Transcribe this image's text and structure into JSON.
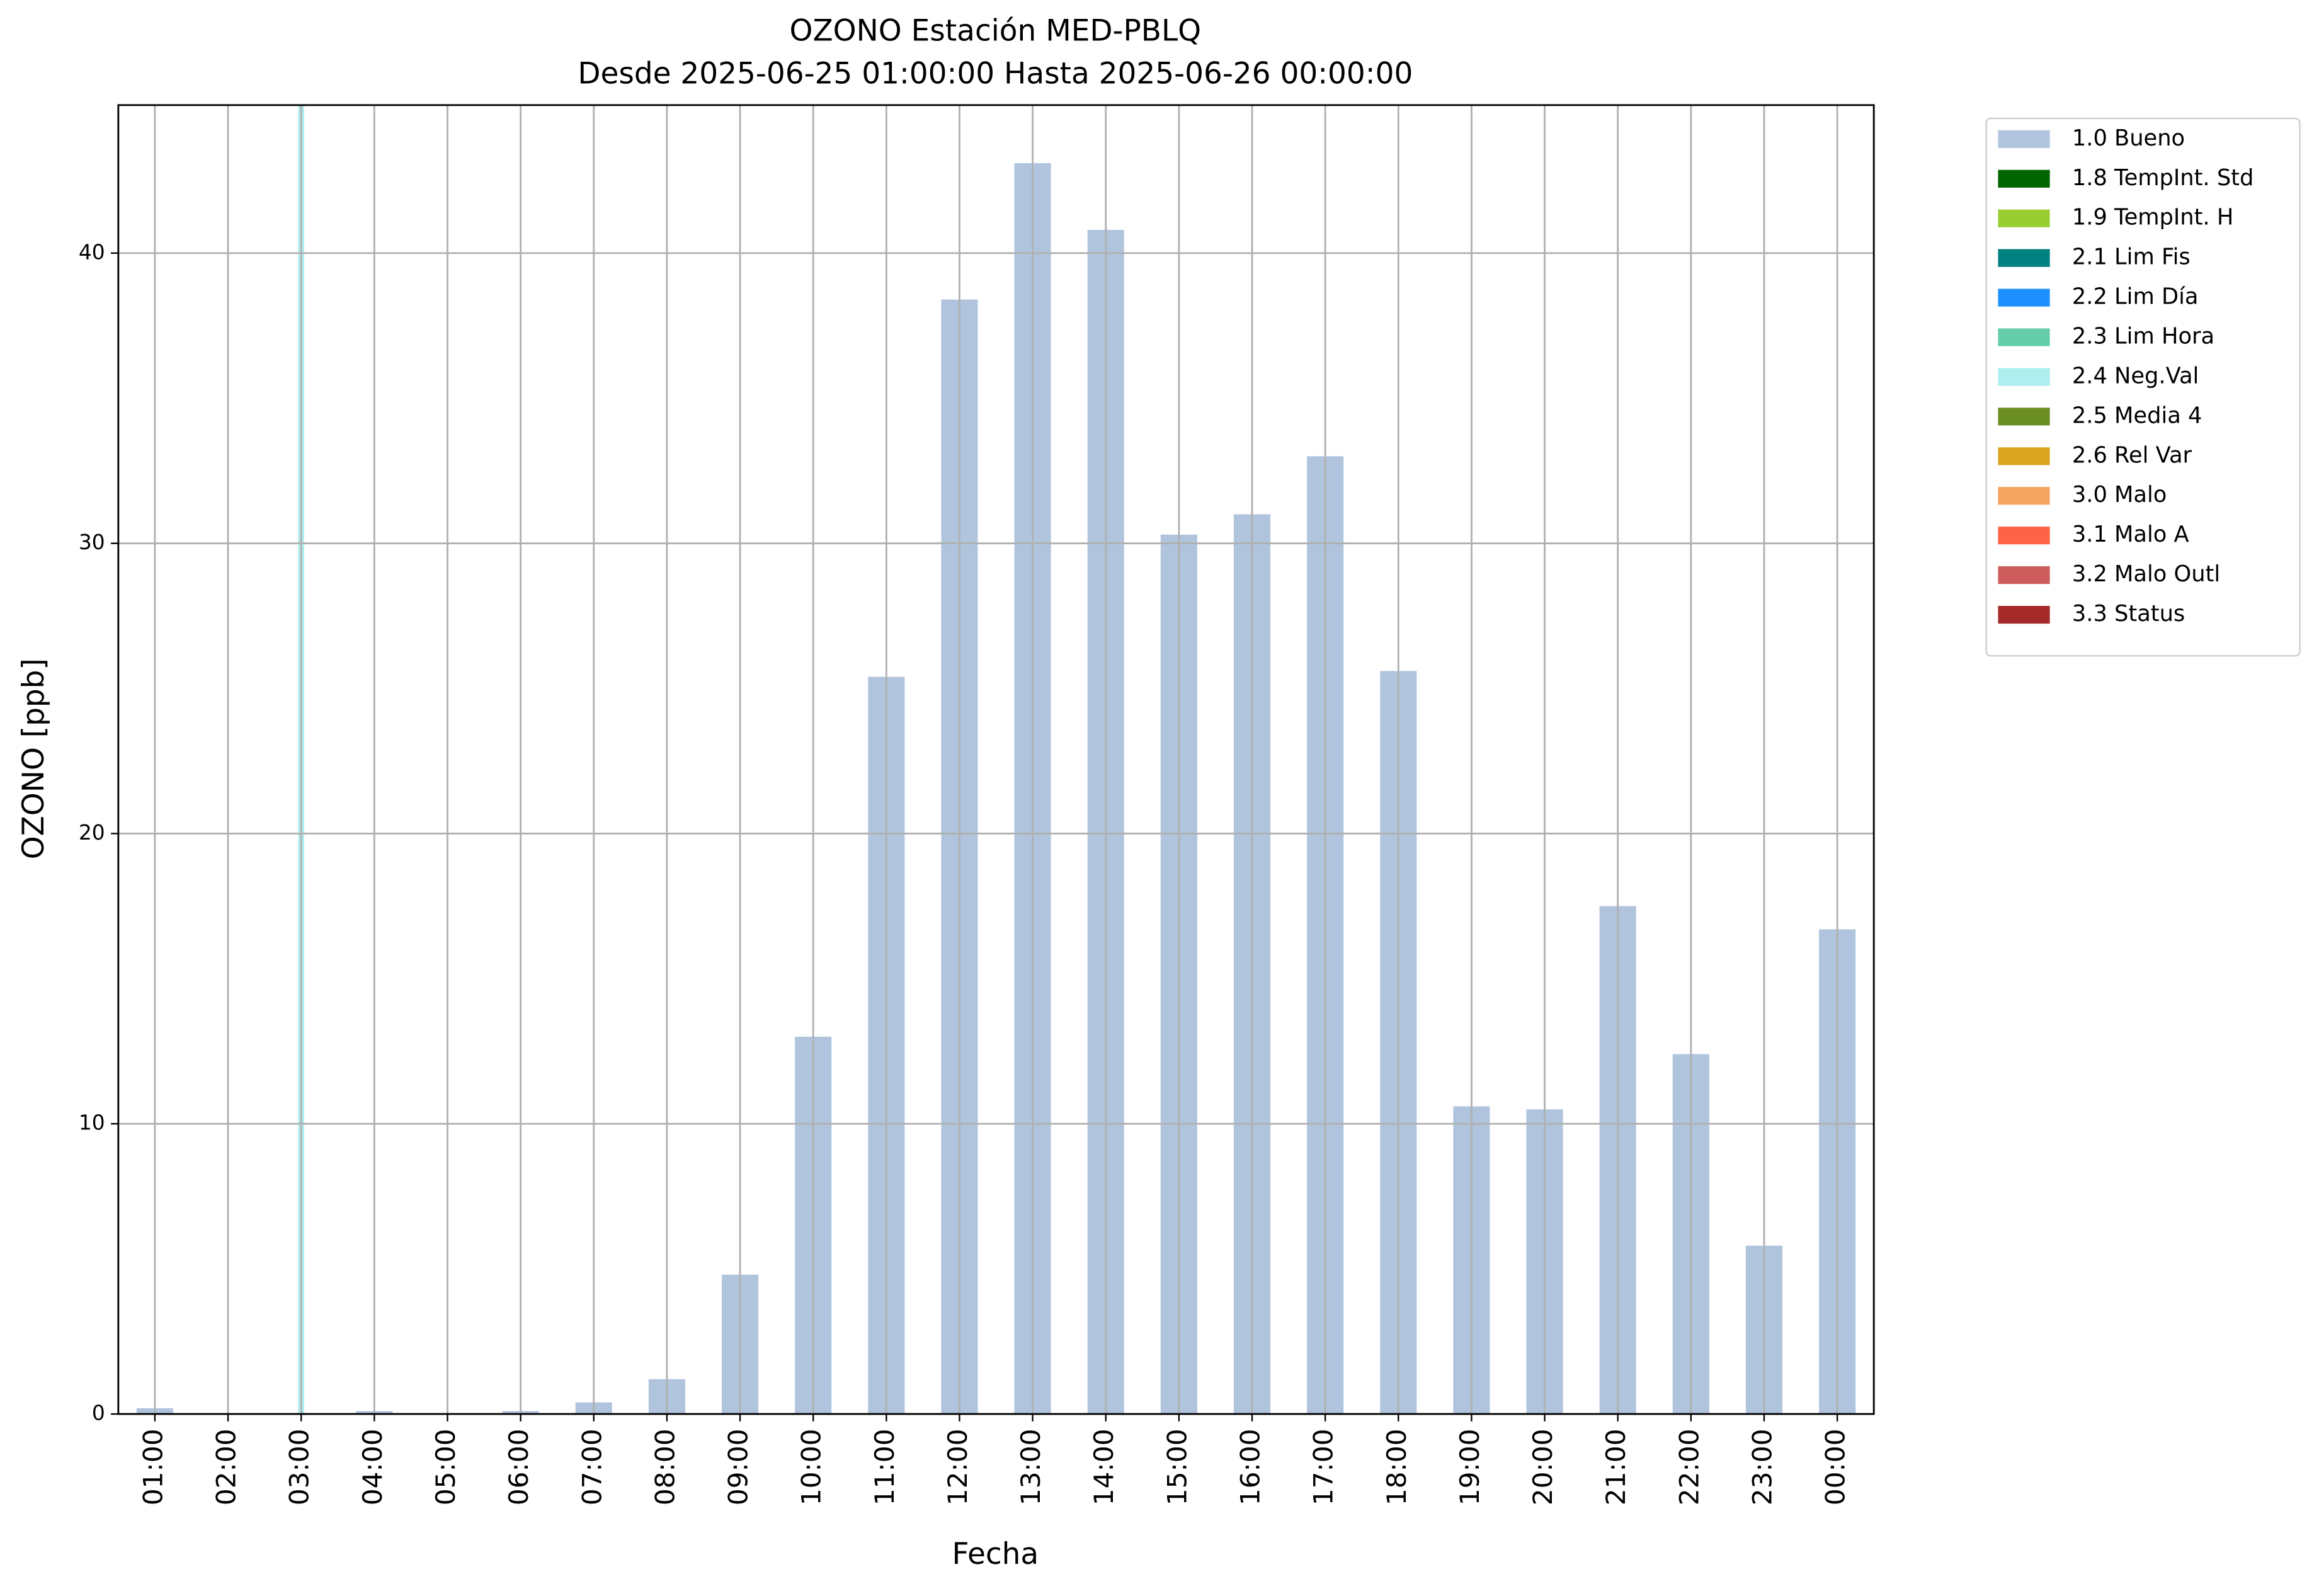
{
  "chart_data": {
    "type": "bar",
    "title": "OZONO Estación MED-PBLQ",
    "subtitle": "Desde 2025-06-25 01:00:00 Hasta 2025-06-26 00:00:00",
    "x_label": "Fecha",
    "y_label": "OZONO [ppb]",
    "categories": [
      "01:00",
      "02:00",
      "03:00",
      "04:00",
      "05:00",
      "06:00",
      "07:00",
      "08:00",
      "09:00",
      "10:00",
      "11:00",
      "12:00",
      "13:00",
      "14:00",
      "15:00",
      "16:00",
      "17:00",
      "18:00",
      "19:00",
      "20:00",
      "21:00",
      "22:00",
      "23:00",
      "00:00"
    ],
    "series": [
      {
        "name": "1.0 Bueno",
        "color": "#b0c4de",
        "values": [
          0.2,
          0,
          null,
          0.1,
          0,
          0.1,
          0.4,
          1.2,
          4.8,
          13.0,
          25.4,
          38.4,
          43.1,
          40.8,
          30.3,
          31.0,
          33.0,
          25.6,
          10.6,
          10.5,
          17.5,
          12.4,
          5.8,
          16.7
        ]
      },
      {
        "name": "1.8 TempInt. Std",
        "color": "#006400",
        "values": [
          null,
          null,
          null,
          null,
          null,
          null,
          null,
          null,
          null,
          null,
          null,
          null,
          null,
          null,
          null,
          null,
          null,
          null,
          null,
          null,
          null,
          null,
          null,
          null
        ]
      },
      {
        "name": "1.9 TempInt. H",
        "color": "#9acd32",
        "values": [
          null,
          null,
          null,
          null,
          null,
          null,
          null,
          null,
          null,
          null,
          null,
          null,
          null,
          null,
          null,
          null,
          null,
          null,
          null,
          null,
          null,
          null,
          null,
          null
        ]
      },
      {
        "name": "2.1 Lim Fis",
        "color": "#008080",
        "values": [
          null,
          null,
          null,
          null,
          null,
          null,
          null,
          null,
          null,
          null,
          null,
          null,
          null,
          null,
          null,
          null,
          null,
          null,
          null,
          null,
          null,
          null,
          null,
          null
        ]
      },
      {
        "name": "2.2 Lim Día",
        "color": "#1e90ff",
        "values": [
          null,
          null,
          null,
          null,
          null,
          null,
          null,
          null,
          null,
          null,
          null,
          null,
          null,
          null,
          null,
          null,
          null,
          null,
          null,
          null,
          null,
          null,
          null,
          null
        ]
      },
      {
        "name": "2.3 Lim Hora",
        "color": "#66cdaa",
        "values": [
          null,
          null,
          null,
          null,
          null,
          null,
          null,
          null,
          null,
          null,
          null,
          null,
          null,
          null,
          null,
          null,
          null,
          null,
          null,
          null,
          null,
          null,
          null,
          null
        ]
      },
      {
        "name": "2.4 Neg.Val",
        "color": "#afeeee",
        "values": [
          null,
          null,
          45.1,
          null,
          null,
          null,
          null,
          null,
          null,
          null,
          null,
          null,
          null,
          null,
          null,
          null,
          null,
          null,
          null,
          null,
          null,
          null,
          null,
          null
        ]
      },
      {
        "name": "2.5 Media 4",
        "color": "#6b8e23",
        "values": [
          null,
          null,
          null,
          null,
          null,
          null,
          null,
          null,
          null,
          null,
          null,
          null,
          null,
          null,
          null,
          null,
          null,
          null,
          null,
          null,
          null,
          null,
          null,
          null
        ]
      },
      {
        "name": "2.6 Rel Var",
        "color": "#daa520",
        "values": [
          null,
          null,
          null,
          null,
          null,
          null,
          null,
          null,
          null,
          null,
          null,
          null,
          null,
          null,
          null,
          null,
          null,
          null,
          null,
          null,
          null,
          null,
          null,
          null
        ]
      },
      {
        "name": "3.0 Malo",
        "color": "#f4a460",
        "values": [
          null,
          null,
          null,
          null,
          null,
          null,
          null,
          null,
          null,
          null,
          null,
          null,
          null,
          null,
          null,
          null,
          null,
          null,
          null,
          null,
          null,
          null,
          null,
          null
        ]
      },
      {
        "name": "3.1 Malo A",
        "color": "#ff6347",
        "values": [
          null,
          null,
          null,
          null,
          null,
          null,
          null,
          null,
          null,
          null,
          null,
          null,
          null,
          null,
          null,
          null,
          null,
          null,
          null,
          null,
          null,
          null,
          null,
          null
        ]
      },
      {
        "name": "3.2 Malo Outl",
        "color": "#cd5c5c",
        "values": [
          null,
          null,
          null,
          null,
          null,
          null,
          null,
          null,
          null,
          null,
          null,
          null,
          null,
          null,
          null,
          null,
          null,
          null,
          null,
          null,
          null,
          null,
          null,
          null
        ]
      },
      {
        "name": "3.3 Status",
        "color": "#a52a2a",
        "values": [
          null,
          null,
          null,
          null,
          null,
          null,
          null,
          null,
          null,
          null,
          null,
          null,
          null,
          null,
          null,
          null,
          null,
          null,
          null,
          null,
          null,
          null,
          null,
          null
        ]
      }
    ],
    "ylim": [
      0,
      45.1
    ],
    "yticks": [
      0,
      10,
      20,
      30,
      40
    ],
    "grid": true,
    "legend": "outside-right"
  }
}
